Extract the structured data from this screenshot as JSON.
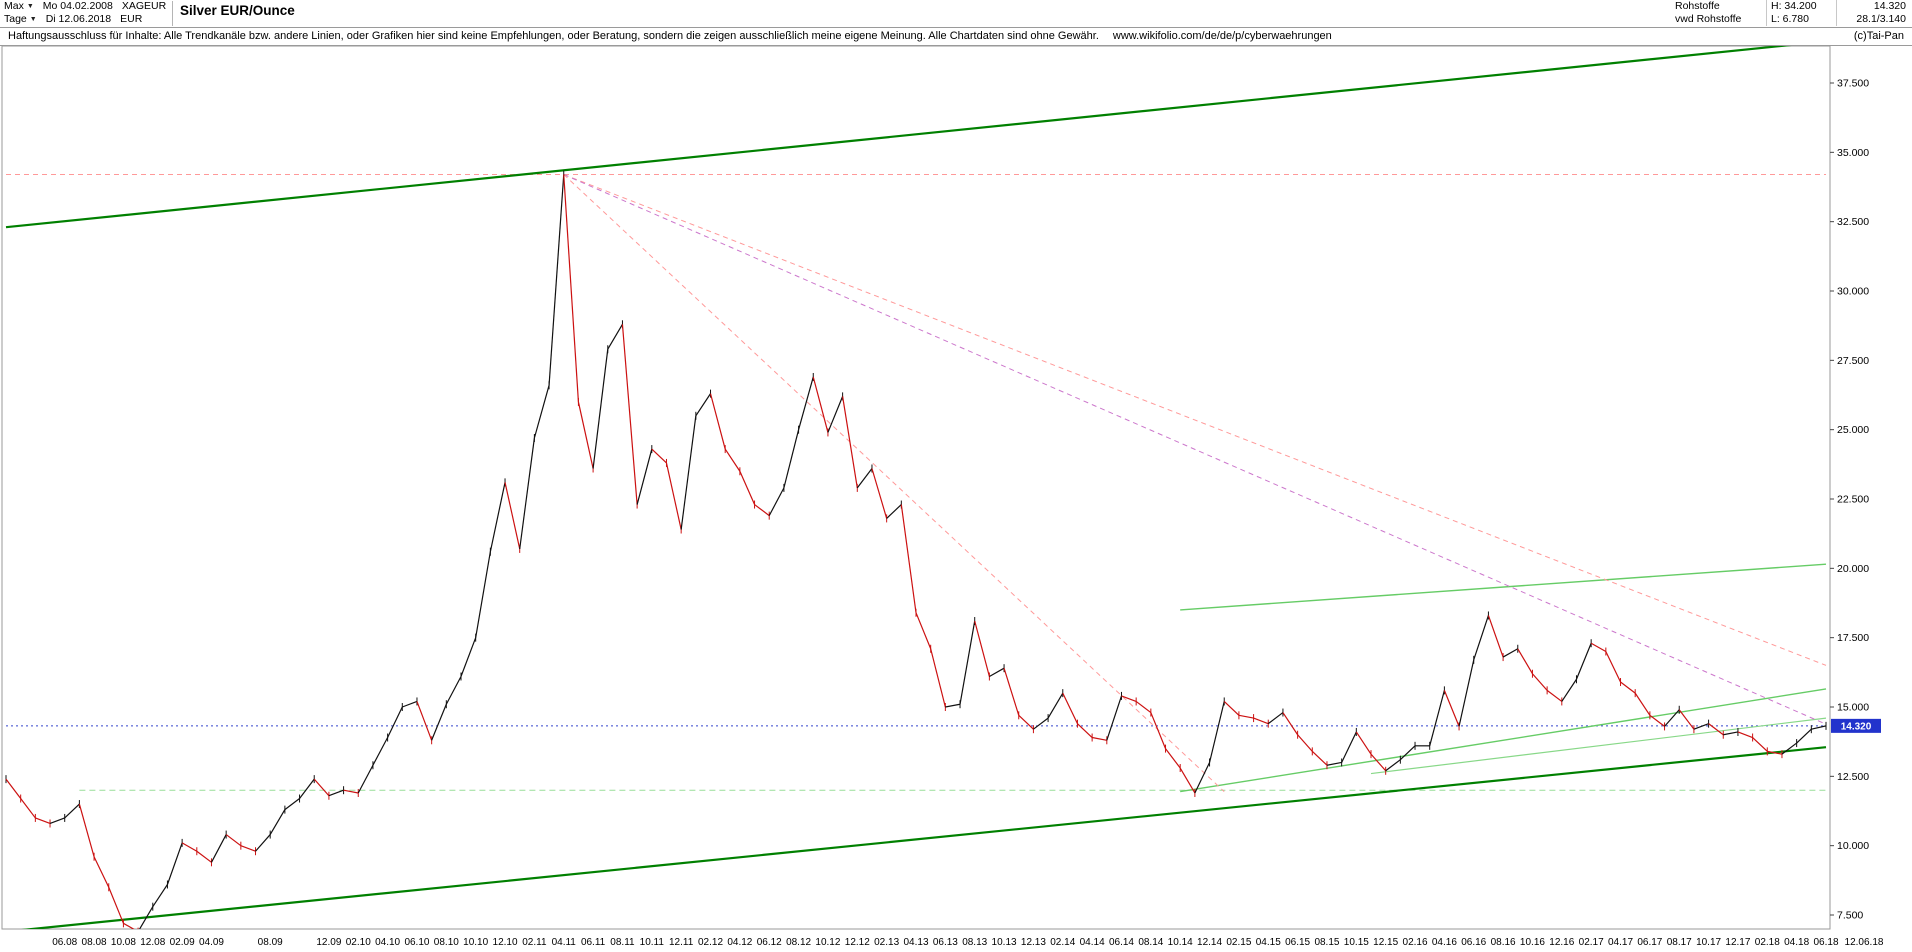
{
  "header": {
    "range_selector": "Max",
    "period_selector": "Tage",
    "start_label": "Mo 04.02.2008",
    "end_label": "Di 12.06.2018",
    "symbol": "XAGEUR",
    "currency": "EUR",
    "title": "Silver EUR/Ounce",
    "category": "Rohstoffe",
    "source": "vwd Rohstoffe",
    "high_label": "H: 34.200",
    "low_label": "L: 6.780",
    "last_price_label": "14.320",
    "extra_value": "28.1/3.140",
    "copyright": "(c)Tai-Pan"
  },
  "disclaimer": {
    "text": "Haftungsausschluss für Inhalte: Alle Trendkanäle bzw. andere Linien, oder Grafiken hier sind keine Empfehlungen, oder Beratung, sondern die zeigen ausschließlich meine eigene Meinung. Alle Chartdaten sind ohne Gewähr.",
    "url": "www.wikifolio.com/de/de/p/cyberwaehrungen"
  },
  "chart_data": {
    "type": "line",
    "original_style": "candlestick",
    "title": "Silver EUR/Ounce",
    "xlabel": "",
    "ylabel": "EUR",
    "grid": false,
    "legend": false,
    "xlim": [
      "2008-02",
      "2018-06"
    ],
    "ylim": [
      7.0,
      38.8
    ],
    "interval": "monthly",
    "start_month": "2008-02",
    "end_month": "2018-06",
    "high": 34.2,
    "low": 6.78,
    "last_price": 14.32,
    "last_price_label": "14.320",
    "end_axis_label": "12.06.18",
    "values": [
      12.4,
      11.7,
      11.0,
      10.8,
      11.0,
      11.5,
      9.6,
      8.5,
      7.2,
      6.9,
      7.8,
      8.6,
      10.1,
      9.8,
      9.4,
      10.4,
      10.0,
      9.8,
      10.4,
      11.3,
      11.7,
      12.4,
      11.8,
      12.0,
      11.9,
      12.9,
      13.9,
      15.0,
      15.2,
      13.8,
      15.1,
      16.1,
      17.5,
      20.6,
      23.1,
      20.7,
      24.7,
      26.6,
      34.2,
      26.0,
      23.6,
      27.9,
      28.8,
      22.3,
      24.3,
      23.8,
      21.4,
      25.5,
      26.3,
      24.3,
      23.5,
      22.3,
      21.9,
      22.9,
      25.0,
      26.9,
      24.9,
      26.2,
      22.9,
      23.6,
      21.8,
      22.3,
      18.4,
      17.1,
      15.0,
      15.1,
      18.1,
      16.1,
      16.4,
      14.7,
      14.2,
      14.6,
      15.5,
      14.4,
      13.9,
      13.8,
      15.4,
      15.2,
      14.8,
      13.5,
      12.8,
      11.9,
      13.0,
      15.2,
      14.7,
      14.6,
      14.4,
      14.8,
      14.0,
      13.4,
      12.9,
      13.0,
      14.1,
      13.3,
      12.7,
      13.1,
      13.6,
      13.6,
      15.6,
      14.3,
      16.7,
      18.3,
      16.8,
      17.1,
      16.2,
      15.6,
      15.2,
      16.0,
      17.3,
      17.0,
      15.9,
      15.5,
      14.7,
      14.3,
      14.9,
      14.2,
      14.4,
      14.0,
      14.1,
      13.9,
      13.4,
      13.3,
      13.7,
      14.2,
      14.32
    ],
    "y_ticks": [
      {
        "v": 37.5,
        "label": "37.500"
      },
      {
        "v": 35,
        "label": "35.000"
      },
      {
        "v": 32.5,
        "label": "32.500"
      },
      {
        "v": 30,
        "label": "30.000"
      },
      {
        "v": 27.5,
        "label": "27.500"
      },
      {
        "v": 25,
        "label": "25.000"
      },
      {
        "v": 22.5,
        "label": "22.500"
      },
      {
        "v": 20,
        "label": "20.000"
      },
      {
        "v": 17.5,
        "label": "17.500"
      },
      {
        "v": 15,
        "label": "15.000"
      },
      {
        "v": 12.5,
        "label": "12.500"
      },
      {
        "v": 10,
        "label": "10.000"
      },
      {
        "v": 7.5,
        "label": "7.500"
      }
    ],
    "x_ticks": [
      [
        4,
        "06.08"
      ],
      [
        6,
        "08.08"
      ],
      [
        8,
        "10.08"
      ],
      [
        10,
        "12.08"
      ],
      [
        12,
        "02.09"
      ],
      [
        14,
        "04.09"
      ],
      [
        18,
        "08.09"
      ],
      [
        22,
        "12.09"
      ],
      [
        24,
        "02.10"
      ],
      [
        26,
        "04.10"
      ],
      [
        28,
        "06.10"
      ],
      [
        30,
        "08.10"
      ],
      [
        32,
        "10.10"
      ],
      [
        34,
        "12.10"
      ],
      [
        36,
        "02.11"
      ],
      [
        38,
        "04.11"
      ],
      [
        40,
        "06.11"
      ],
      [
        42,
        "08.11"
      ],
      [
        44,
        "10.11"
      ],
      [
        46,
        "12.11"
      ],
      [
        48,
        "02.12"
      ],
      [
        50,
        "04.12"
      ],
      [
        52,
        "06.12"
      ],
      [
        54,
        "08.12"
      ],
      [
        56,
        "10.12"
      ],
      [
        58,
        "12.12"
      ],
      [
        60,
        "02.13"
      ],
      [
        62,
        "04.13"
      ],
      [
        64,
        "06.13"
      ],
      [
        66,
        "08.13"
      ],
      [
        68,
        "10.13"
      ],
      [
        70,
        "12.13"
      ],
      [
        72,
        "02.14"
      ],
      [
        74,
        "04.14"
      ],
      [
        76,
        "06.14"
      ],
      [
        78,
        "08.14"
      ],
      [
        80,
        "10.14"
      ],
      [
        82,
        "12.14"
      ],
      [
        84,
        "02.15"
      ],
      [
        86,
        "04.15"
      ],
      [
        88,
        "06.15"
      ],
      [
        90,
        "08.15"
      ],
      [
        92,
        "10.15"
      ],
      [
        94,
        "12.15"
      ],
      [
        96,
        "02.16"
      ],
      [
        98,
        "04.16"
      ],
      [
        100,
        "06.16"
      ],
      [
        102,
        "08.16"
      ],
      [
        104,
        "10.16"
      ],
      [
        106,
        "12.16"
      ],
      [
        108,
        "02.17"
      ],
      [
        110,
        "04.17"
      ],
      [
        112,
        "06.17"
      ],
      [
        114,
        "08.17"
      ],
      [
        116,
        "10.17"
      ],
      [
        118,
        "12.17"
      ],
      [
        120,
        "02.18"
      ],
      [
        122,
        "04.18"
      ],
      [
        124,
        "06.18"
      ]
    ],
    "lines": [
      {
        "name": "high-dashed-line",
        "from": [
          0,
          34.2
        ],
        "to": [
          124,
          34.2
        ],
        "color": "#ff9999",
        "width": 1,
        "dash": "5 4"
      },
      {
        "name": "support-dashed-line",
        "from": [
          5,
          12.0
        ],
        "to": [
          124,
          12.0
        ],
        "color": "#99dd99",
        "width": 1,
        "dash": "6 4"
      },
      {
        "name": "last-price-dotted-line",
        "from": [
          0,
          14.32
        ],
        "to": [
          124,
          14.32
        ],
        "color": "#3344cc",
        "width": 1,
        "dash": "2 3"
      },
      {
        "name": "trend-channel-upper",
        "from": [
          0,
          32.3
        ],
        "to": [
          124,
          39.0
        ],
        "color": "#008000",
        "width": 2.2,
        "dash": ""
      },
      {
        "name": "trend-channel-lower",
        "from": [
          0,
          6.9
        ],
        "to": [
          124,
          13.55
        ],
        "color": "#008000",
        "width": 2.2,
        "dash": ""
      },
      {
        "name": "trend-light-upper",
        "from": [
          80,
          18.5
        ],
        "to": [
          124,
          20.15
        ],
        "color": "#66cc66",
        "width": 1.4,
        "dash": ""
      },
      {
        "name": "trend-light-lower",
        "from": [
          80,
          11.95
        ],
        "to": [
          124,
          15.65
        ],
        "color": "#66cc66",
        "width": 1.4,
        "dash": ""
      },
      {
        "name": "trend-light-short",
        "from": [
          93,
          12.6
        ],
        "to": [
          124,
          14.6
        ],
        "color": "#88d888",
        "width": 1.2,
        "dash": ""
      },
      {
        "name": "fan-line-1",
        "from": [
          38,
          34.2
        ],
        "to": [
          124,
          16.5
        ],
        "color": "#ff9999",
        "width": 1,
        "dash": "5 4"
      },
      {
        "name": "fan-line-2",
        "from": [
          38,
          34.2
        ],
        "to": [
          124,
          14.38
        ],
        "color": "#cc77cc",
        "width": 1,
        "dash": "5 4"
      },
      {
        "name": "fan-line-3",
        "from": [
          38,
          34.2
        ],
        "to": [
          83,
          11.95
        ],
        "color": "#ff9999",
        "width": 1,
        "dash": "5 4"
      }
    ],
    "colors": {
      "up": "#111111",
      "down": "#cc1111",
      "channel": "#008000",
      "light_channel": "#66cc66",
      "fan": "#ff9999",
      "last_line": "#3344cc",
      "tag_bg": "#2233cc",
      "tag_text": "#ffffff",
      "border": "#9a9a9a"
    }
  }
}
